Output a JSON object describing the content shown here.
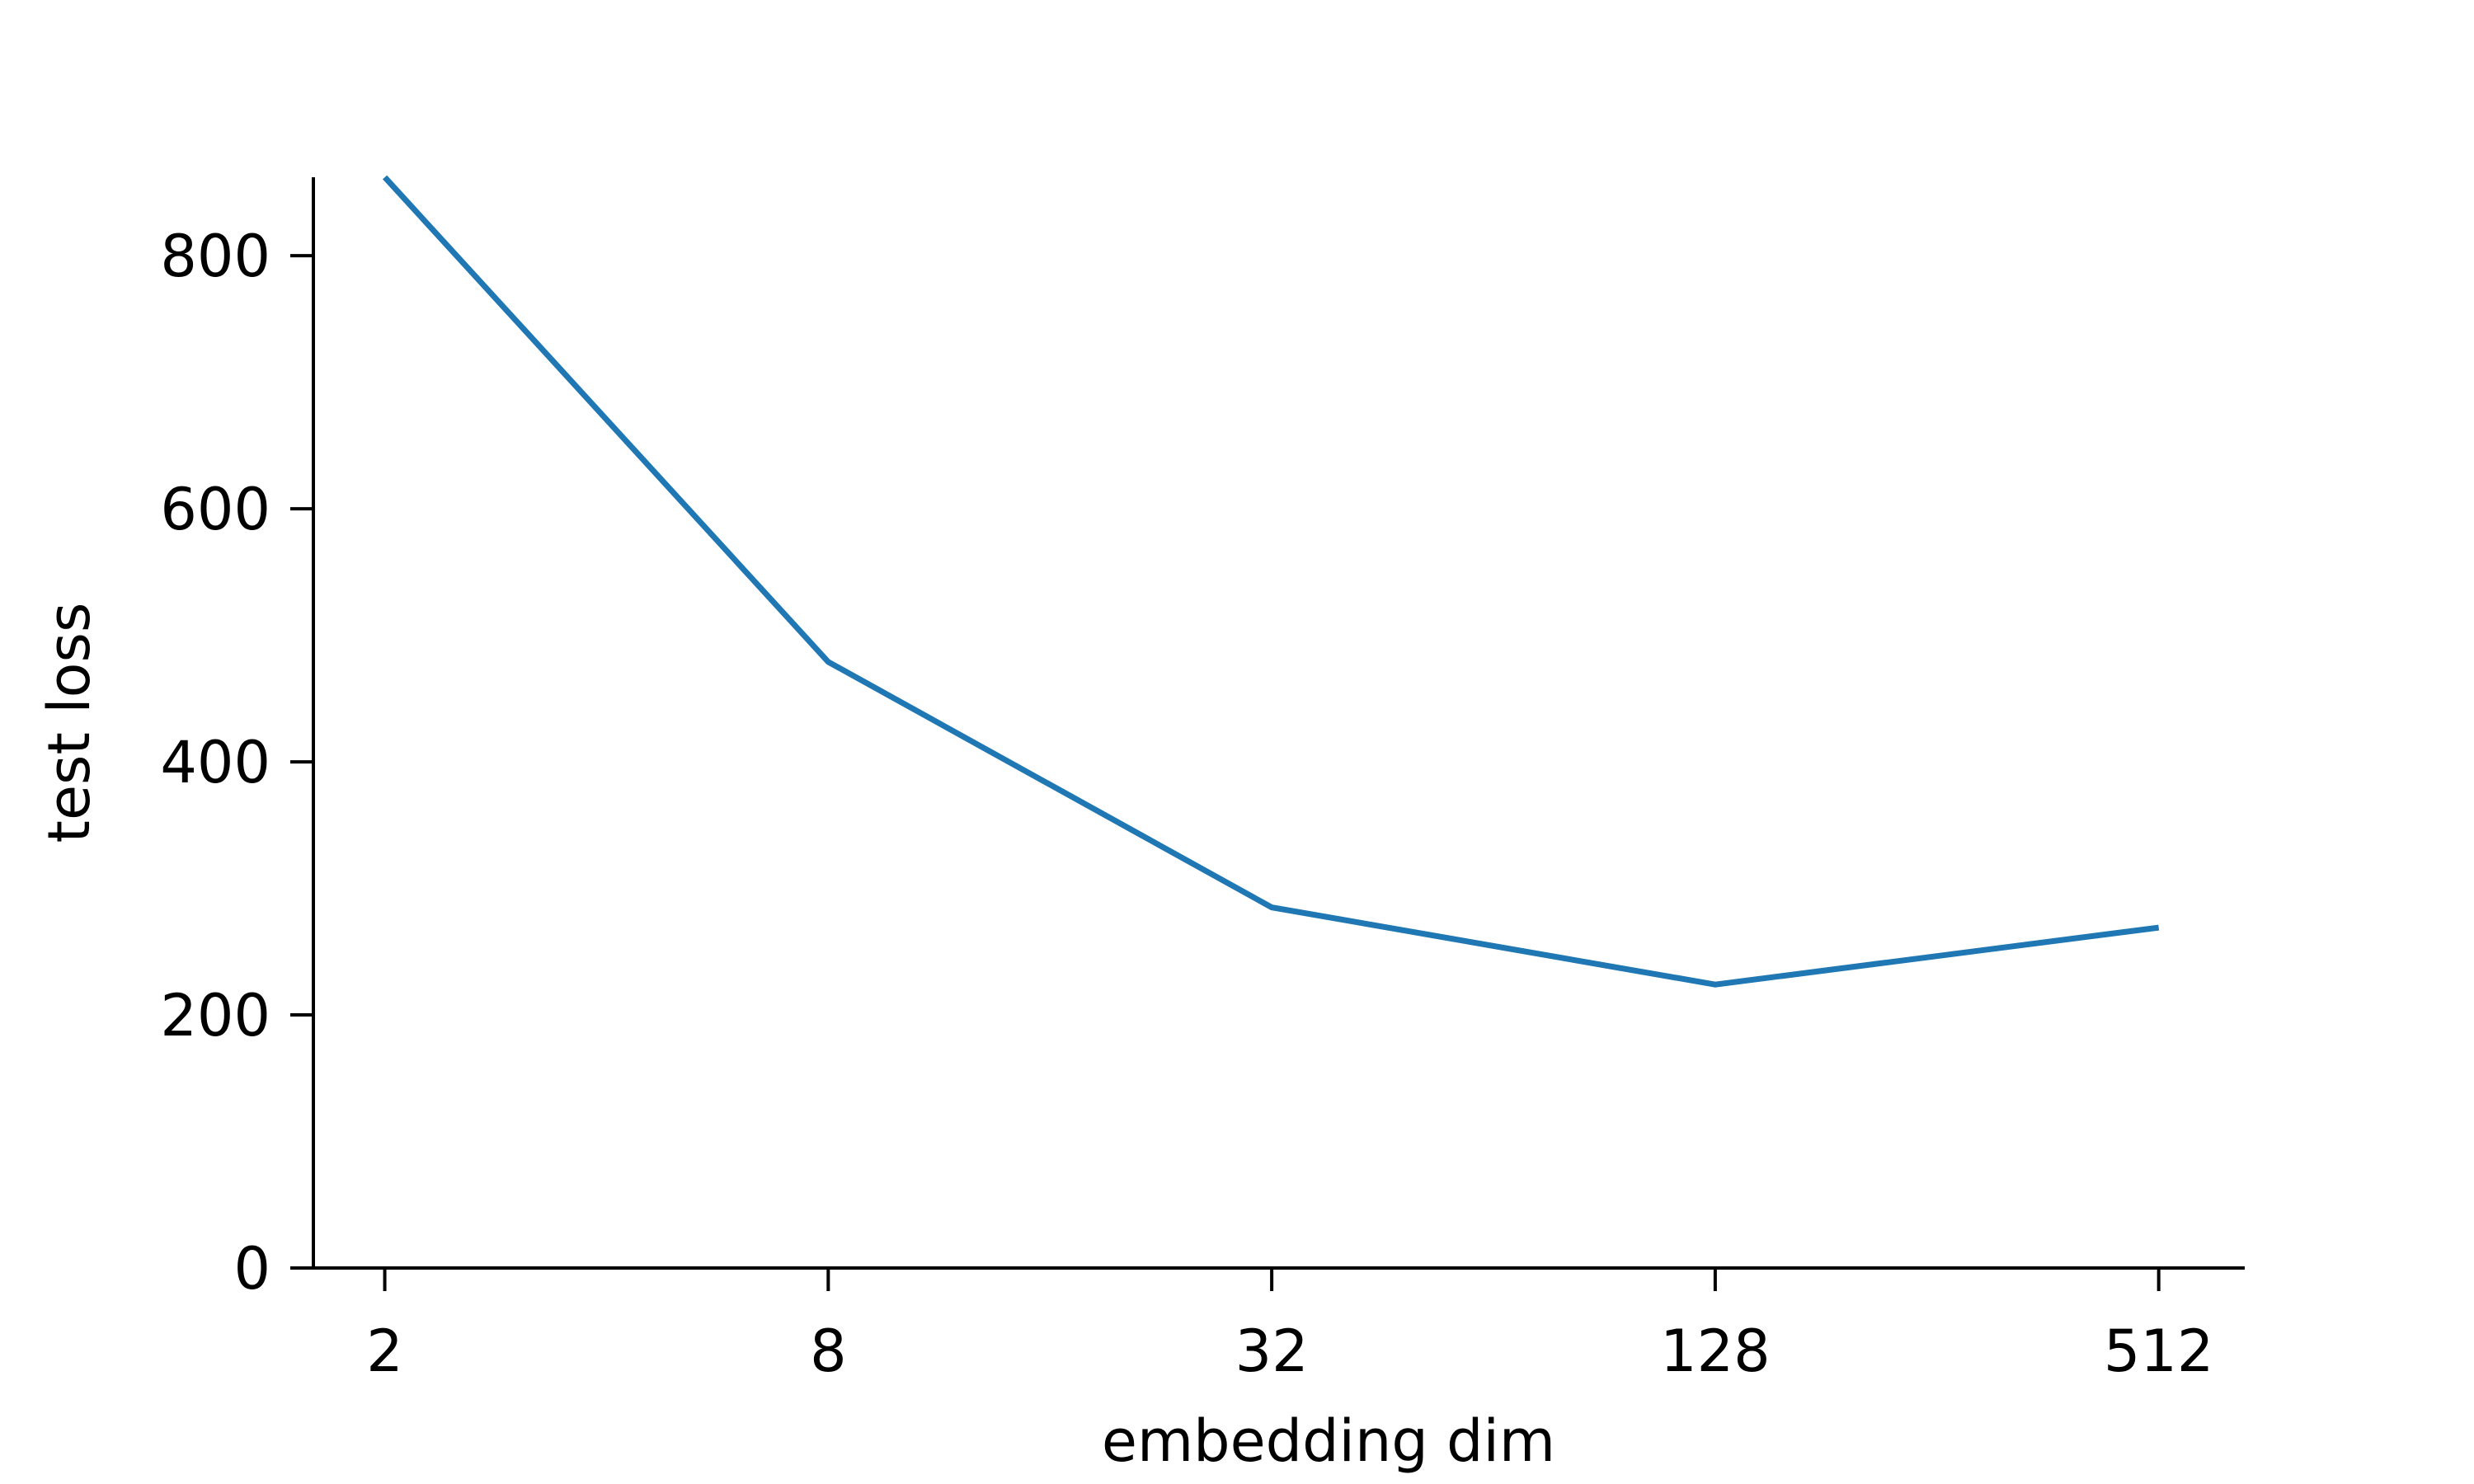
{
  "chart_data": {
    "type": "line",
    "title": "",
    "xlabel": "embedding dim",
    "ylabel": "test loss",
    "x_scale": "log2",
    "x_ticks": [
      2,
      8,
      32,
      128,
      512
    ],
    "x_tick_labels": [
      "2",
      "8",
      "32",
      "128",
      "512"
    ],
    "xlim": [
      1.6,
      670
    ],
    "y_ticks": [
      0,
      200,
      400,
      600,
      800
    ],
    "y_tick_labels": [
      "0",
      "200",
      "400",
      "600",
      "800"
    ],
    "ylim": [
      0,
      862
    ],
    "grid": false,
    "legend": "none",
    "series": [
      {
        "color": "#1f77b4",
        "x": [
          2,
          8,
          32,
          128,
          512
        ],
        "y": [
          862,
          479,
          285,
          224,
          269
        ]
      }
    ]
  }
}
